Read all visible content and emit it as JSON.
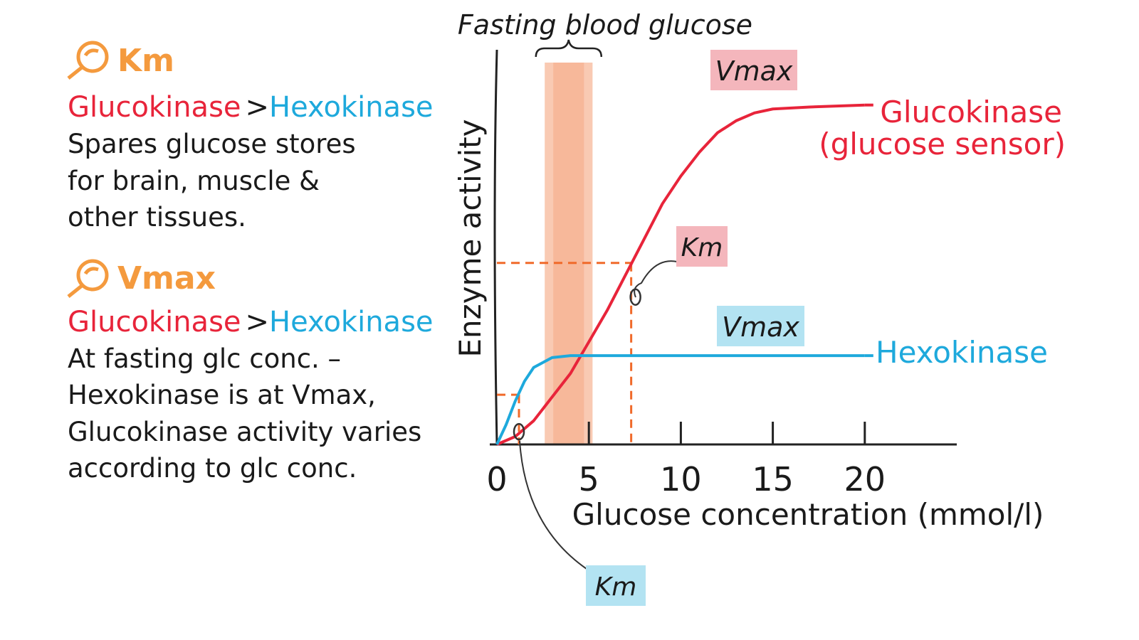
{
  "notes": {
    "km": {
      "heading": "Km",
      "left": "Glucokinase",
      "sep": ">",
      "right": "Hexokinase",
      "lines": [
        "Spares glucose stores",
        "for  brain, muscle &",
        "other tissues."
      ]
    },
    "vmax": {
      "heading": "Vmax",
      "left": "Glucokinase",
      "sep": ">",
      "right": "Hexokinase",
      "lines": [
        "At fasting glc conc. –",
        "Hexokinase is at Vmax,",
        "Glucokinase activity varies",
        "according to glc conc."
      ]
    }
  },
  "chart_data": {
    "type": "line",
    "xlabel": "Glucose concentration (mmol/l)",
    "ylabel": "Enzyme activity",
    "xlim": [
      0,
      25
    ],
    "ylim": [
      0,
      100
    ],
    "xticks": [
      0,
      5,
      10,
      15,
      20
    ],
    "fasting": {
      "label": "Fasting blood glucose",
      "x": [
        2.6,
        5.2
      ],
      "color": "#f7b89a"
    },
    "series": [
      {
        "name": "Glucokinase",
        "note": "(glucose sensor)",
        "color": "#e8243a",
        "x": [
          0,
          1,
          2,
          3,
          4,
          5,
          6,
          7,
          8,
          9,
          10,
          11,
          12,
          13,
          14,
          15,
          17,
          20
        ],
        "values": [
          0,
          2,
          6,
          12,
          18,
          26,
          34,
          43,
          52,
          61,
          68,
          74,
          79,
          82,
          84,
          85,
          85.5,
          86
        ],
        "vmax_label": "Vmax",
        "km": {
          "label": "Km",
          "x": 7.3,
          "y": 46
        }
      },
      {
        "name": "Hexokinase",
        "color": "#1ea9dc",
        "x": [
          0,
          0.5,
          1,
          1.5,
          2,
          3,
          4,
          6,
          10,
          15,
          20
        ],
        "values": [
          0,
          5,
          11,
          16,
          19.5,
          22,
          22.5,
          22.5,
          22.5,
          22.5,
          22.5
        ],
        "vmax_label": "Vmax",
        "km": {
          "label": "Km",
          "x": 1.2,
          "y": 12.6
        }
      }
    ]
  }
}
